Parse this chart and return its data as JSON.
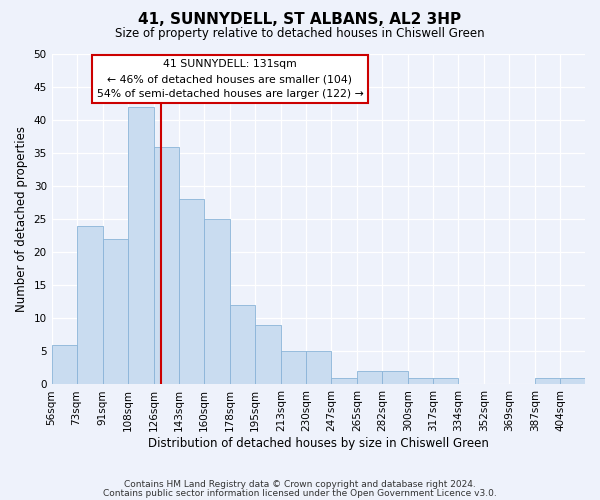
{
  "title": "41, SUNNYDELL, ST ALBANS, AL2 3HP",
  "subtitle": "Size of property relative to detached houses in Chiswell Green",
  "xlabel": "Distribution of detached houses by size in Chiswell Green",
  "ylabel": "Number of detached properties",
  "bin_labels": [
    "56sqm",
    "73sqm",
    "91sqm",
    "108sqm",
    "126sqm",
    "143sqm",
    "160sqm",
    "178sqm",
    "195sqm",
    "213sqm",
    "230sqm",
    "247sqm",
    "265sqm",
    "282sqm",
    "300sqm",
    "317sqm",
    "334sqm",
    "352sqm",
    "369sqm",
    "387sqm",
    "404sqm"
  ],
  "bin_edges": [
    56,
    73,
    91,
    108,
    126,
    143,
    160,
    178,
    195,
    213,
    230,
    247,
    265,
    282,
    300,
    317,
    334,
    352,
    369,
    387,
    404,
    421
  ],
  "counts": [
    6,
    24,
    22,
    42,
    36,
    28,
    25,
    12,
    9,
    5,
    5,
    1,
    2,
    2,
    1,
    1,
    0,
    0,
    0,
    1,
    1
  ],
  "bar_color": "#c9dcf0",
  "bar_edge_color": "#8ab4d8",
  "vline_x": 131,
  "vline_color": "#cc0000",
  "annotation_line1": "41 SUNNYDELL: 131sqm",
  "annotation_line2": "← 46% of detached houses are smaller (104)",
  "annotation_line3": "54% of semi-detached houses are larger (122) →",
  "ylim": [
    0,
    50
  ],
  "yticks": [
    0,
    5,
    10,
    15,
    20,
    25,
    30,
    35,
    40,
    45,
    50
  ],
  "footer_line1": "Contains HM Land Registry data © Crown copyright and database right 2024.",
  "footer_line2": "Contains public sector information licensed under the Open Government Licence v3.0.",
  "bg_color": "#eef2fb"
}
